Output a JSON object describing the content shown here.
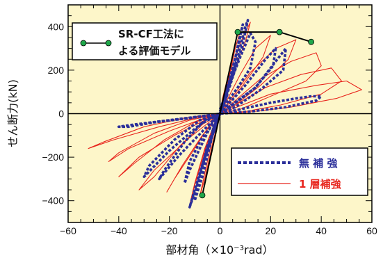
{
  "chart_data": {
    "type": "line",
    "title": "",
    "xlabel": "部材角（×10⁻³rad）",
    "ylabel": "せん断力(kN)",
    "xlim": [
      -60,
      60
    ],
    "ylim": [
      -500,
      500
    ],
    "x_ticks": [
      -60,
      -40,
      -20,
      0,
      20,
      40,
      60
    ],
    "y_ticks": [
      -400,
      -200,
      0,
      200,
      400
    ],
    "x_tick_labels": [
      "−60",
      "−40",
      "−20",
      "0",
      "20",
      "40",
      "60"
    ],
    "y_tick_labels": [
      "−400",
      "−200",
      "0",
      "200",
      "400"
    ],
    "grid": false,
    "background_color": "#fdf6c9",
    "legend_top_left": {
      "position": "top-left",
      "label_line1": "SR-CF工法に",
      "label_line2": "よる評価モデル"
    },
    "legend_bottom_right": {
      "position": "bottom-right",
      "entries": [
        {
          "series": "無補強",
          "label": "無 補 強",
          "color": "#2b2f9a"
        },
        {
          "series": "1層補強",
          "label": "1 層補強",
          "color": "#e8261e"
        }
      ]
    },
    "series": [
      {
        "name": "SR-CF工法による評価モデル",
        "style": "line-with-markers",
        "color": "#000000",
        "marker_color": "#1fa84a",
        "x": [
          -7,
          0,
          7,
          23.5,
          36
        ],
        "y": [
          -375,
          0,
          375,
          375,
          330
        ]
      },
      {
        "name": "無補強",
        "style": "dashed",
        "color": "#2b2f9a",
        "loops": [
          {
            "x": [
              0,
              2,
              3,
              1,
              0,
              -1,
              -3,
              -2,
              0
            ],
            "y": [
              0,
              60,
              90,
              30,
              0,
              -30,
              -80,
              -50,
              0
            ]
          },
          {
            "x": [
              0,
              4,
              6,
              5,
              2,
              0,
              -2,
              -5,
              -7,
              -6,
              -3,
              0
            ],
            "y": [
              0,
              140,
              220,
              180,
              70,
              0,
              -60,
              -170,
              -240,
              -200,
              -90,
              0
            ]
          },
          {
            "x": [
              0,
              5,
              8,
              9,
              7,
              3,
              0,
              -3,
              -7,
              -10,
              -9,
              -5,
              0
            ],
            "y": [
              0,
              200,
              360,
              410,
              300,
              120,
              0,
              -100,
              -290,
              -400,
              -330,
              -150,
              0
            ]
          },
          {
            "x": [
              0,
              7,
              10,
              11,
              9,
              4,
              0,
              -4,
              -9,
              -12,
              -10,
              -5,
              0
            ],
            "y": [
              10,
              260,
              400,
              430,
              320,
              130,
              0,
              -120,
              -330,
              -430,
              -350,
              -160,
              -10
            ]
          },
          {
            "x": [
              0,
              10,
              18,
              22,
              21,
              14,
              5,
              0,
              -6,
              -14,
              -22,
              -24,
              -16,
              -6,
              0
            ],
            "y": [
              0,
              130,
              250,
              300,
              220,
              120,
              40,
              0,
              -30,
              -130,
              -260,
              -300,
              -190,
              -70,
              0
            ]
          },
          {
            "x": [
              0,
              14,
              22,
              26,
              25,
              16,
              6,
              0,
              -8,
              -18,
              -28,
              -30,
              -20,
              -8,
              0
            ],
            "y": [
              0,
              120,
              240,
              300,
              200,
              110,
              30,
              0,
              -30,
              -120,
              -240,
              -290,
              -170,
              -50,
              0
            ]
          },
          {
            "x": [
              0,
              20,
              30,
              36,
              40,
              38,
              26,
              12,
              0,
              -12,
              -26,
              -36,
              -40,
              -34,
              -20,
              -6,
              0
            ],
            "y": [
              0,
              50,
              70,
              80,
              80,
              60,
              30,
              10,
              0,
              -20,
              -40,
              -60,
              -60,
              -50,
              -30,
              -10,
              0
            ]
          },
          {
            "x": [
              0,
              8,
              12,
              14,
              12,
              7,
              2,
              0,
              -3,
              -8,
              -12,
              -14,
              -12,
              -7,
              -2,
              0
            ],
            "y": [
              20,
              260,
              370,
              330,
              210,
              120,
              40,
              0,
              -40,
              -160,
              -260,
              -320,
              -220,
              -110,
              -40,
              0
            ]
          }
        ]
      },
      {
        "name": "1層補強",
        "style": "solid",
        "color": "#e8261e",
        "loops": [
          {
            "x": [
              0,
              3,
              6,
              8,
              5,
              1,
              0,
              -2,
              -5,
              -8,
              -6,
              -3,
              0
            ],
            "y": [
              0,
              140,
              300,
              380,
              260,
              70,
              0,
              -60,
              -220,
              -380,
              -300,
              -140,
              0
            ]
          },
          {
            "x": [
              0,
              8,
              14,
              20,
              17,
              9,
              3,
              0,
              -4,
              -10,
              -18,
              -21,
              -15,
              -7,
              0
            ],
            "y": [
              0,
              180,
              300,
              360,
              260,
              130,
              40,
              0,
              -50,
              -160,
              -300,
              -360,
              -240,
              -100,
              0
            ]
          },
          {
            "x": [
              0,
              12,
              22,
              30,
              27,
              16,
              6,
              0,
              -7,
              -16,
              -26,
              -32,
              -26,
              -12,
              0
            ],
            "y": [
              0,
              190,
              300,
              340,
              250,
              130,
              40,
              0,
              -50,
              -150,
              -290,
              -350,
              -260,
              -110,
              0
            ]
          },
          {
            "x": [
              0,
              16,
              28,
              38,
              40,
              34,
              20,
              8,
              0,
              -10,
              -22,
              -34,
              -40,
              -32,
              -18,
              -6,
              0
            ],
            "y": [
              0,
              160,
              240,
              280,
              220,
              150,
              80,
              20,
              0,
              -40,
              -120,
              -230,
              -290,
              -200,
              -100,
              -30,
              0
            ]
          },
          {
            "x": [
              0,
              18,
              32,
              44,
              48,
              40,
              24,
              10,
              0,
              -12,
              -26,
              -40,
              -44,
              -36,
              -20,
              -6,
              0
            ],
            "y": [
              0,
              120,
              180,
              210,
              150,
              90,
              40,
              10,
              0,
              -30,
              -90,
              -180,
              -220,
              -160,
              -80,
              -20,
              0
            ]
          },
          {
            "x": [
              0,
              20,
              38,
              50,
              56,
              46,
              28,
              12,
              0,
              -14,
              -30,
              -46,
              -52,
              -42,
              -24,
              -8,
              0
            ],
            "y": [
              0,
              90,
              130,
              150,
              110,
              70,
              30,
              8,
              0,
              -20,
              -60,
              -130,
              -160,
              -120,
              -60,
              -15,
              0
            ]
          },
          {
            "x": [
              0,
              5,
              9,
              12,
              10,
              5,
              1,
              0,
              -2,
              -6,
              -10,
              -12,
              -10,
              -6,
              -2,
              0
            ],
            "y": [
              0,
              230,
              350,
              420,
              330,
              180,
              60,
              0,
              -40,
              -170,
              -330,
              -420,
              -320,
              -160,
              -40,
              0
            ]
          }
        ]
      }
    ]
  }
}
